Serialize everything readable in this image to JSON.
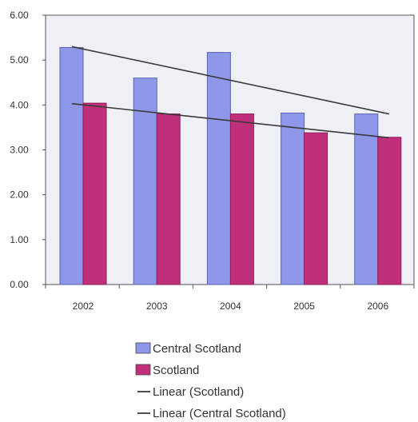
{
  "chart_data": {
    "type": "bar",
    "title": "",
    "xlabel": "",
    "ylabel": "",
    "categories": [
      "2002",
      "2003",
      "2004",
      "2005",
      "2006"
    ],
    "ylim": [
      0,
      6
    ],
    "yticks": [
      "0.00",
      "1.00",
      "2.00",
      "3.00",
      "4.00",
      "5.00",
      "6.00"
    ],
    "grid": false,
    "legend_position": "bottom",
    "series": [
      {
        "name": "Central Scotland",
        "values": [
          5.28,
          4.6,
          5.17,
          3.82,
          3.8
        ],
        "color": "#8f97e8"
      },
      {
        "name": "Scotland",
        "values": [
          4.04,
          3.8,
          3.8,
          3.38,
          3.28
        ],
        "color": "#c0307a"
      }
    ],
    "trendlines": [
      {
        "name": "Linear (Scotland)",
        "start": 4.03,
        "end": 3.27,
        "color": "#3a3a3a"
      },
      {
        "name": "Linear (Central Scotland)",
        "start": 5.3,
        "end": 3.8,
        "color": "#3a3a3a"
      }
    ],
    "plot_background": "#eef0f5",
    "legend": [
      {
        "label": "Central Scotland",
        "kind": "box",
        "color": "#8f97e8"
      },
      {
        "label": "Scotland",
        "kind": "box",
        "color": "#c0307a"
      },
      {
        "label": "Linear (Scotland)",
        "kind": "line",
        "color": "#3a3a3a"
      },
      {
        "label": "Linear (Central Scotland)",
        "kind": "line",
        "color": "#3a3a3a"
      }
    ]
  }
}
